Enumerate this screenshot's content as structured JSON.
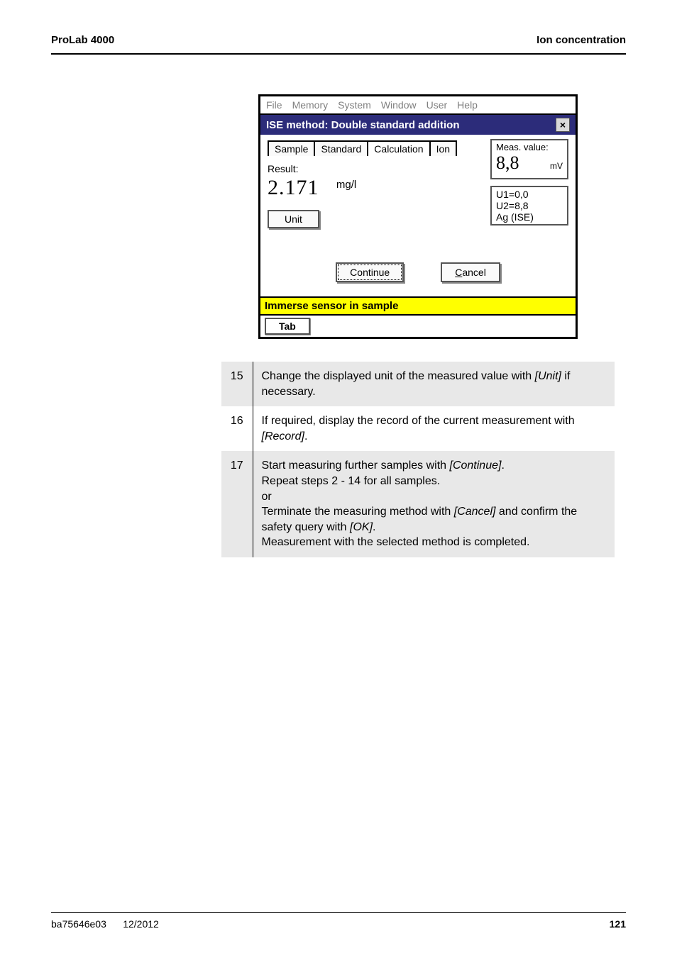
{
  "header": {
    "left": "ProLab 4000",
    "right": "Ion concentration"
  },
  "window": {
    "menubar": [
      "File",
      "Memory",
      "System",
      "Window",
      "User",
      "Help"
    ],
    "title": "ISE method:  Double standard addition",
    "tabs": [
      "Sample",
      "Standard",
      "Calculation",
      "Ion"
    ],
    "active_tab_index": 2,
    "meas_label": "Meas. value:",
    "meas_value": "8,8",
    "meas_unit": "mV",
    "result_label": "Result:",
    "result_value": "2.171",
    "unit_value": "mg/l",
    "unit_button": "Unit",
    "u_lines": [
      "U1=0,0",
      "U2=8,8",
      "Ag (ISE)"
    ],
    "continue_btn": "Continue",
    "cancel_prefix": "C",
    "cancel_rest": "ancel",
    "status1": "Immerse sensor in sample",
    "status2": "Tab"
  },
  "steps": [
    {
      "n": "15",
      "shade": true,
      "html": "Change the displayed unit of the measured value with <span class=\"italic\">[Unit]</span> if necessary."
    },
    {
      "n": "16",
      "shade": false,
      "html": "If required, display the record of the current measurement with <span class=\"italic\">[Record]</span>."
    },
    {
      "n": "17",
      "shade": true,
      "html": "Start measuring further samples with <span class=\"italic\">[Continue]</span>.<br>Repeat steps 2 - 14 for all samples.<br>or<br>Terminate the measuring method with <span class=\"italic\">[Cancel]</span> and confirm the safety query with <span class=\"italic\">[OK]</span>.<br>Measurement with the selected method is completed."
    }
  ],
  "footer": {
    "left1": "ba75646e03",
    "left2": "12/2012",
    "page": "121"
  },
  "colors": {
    "titlebar_bg": "#2c2c7a",
    "status_bg": "#ffff00",
    "shade_bg": "#e8e8e8"
  }
}
